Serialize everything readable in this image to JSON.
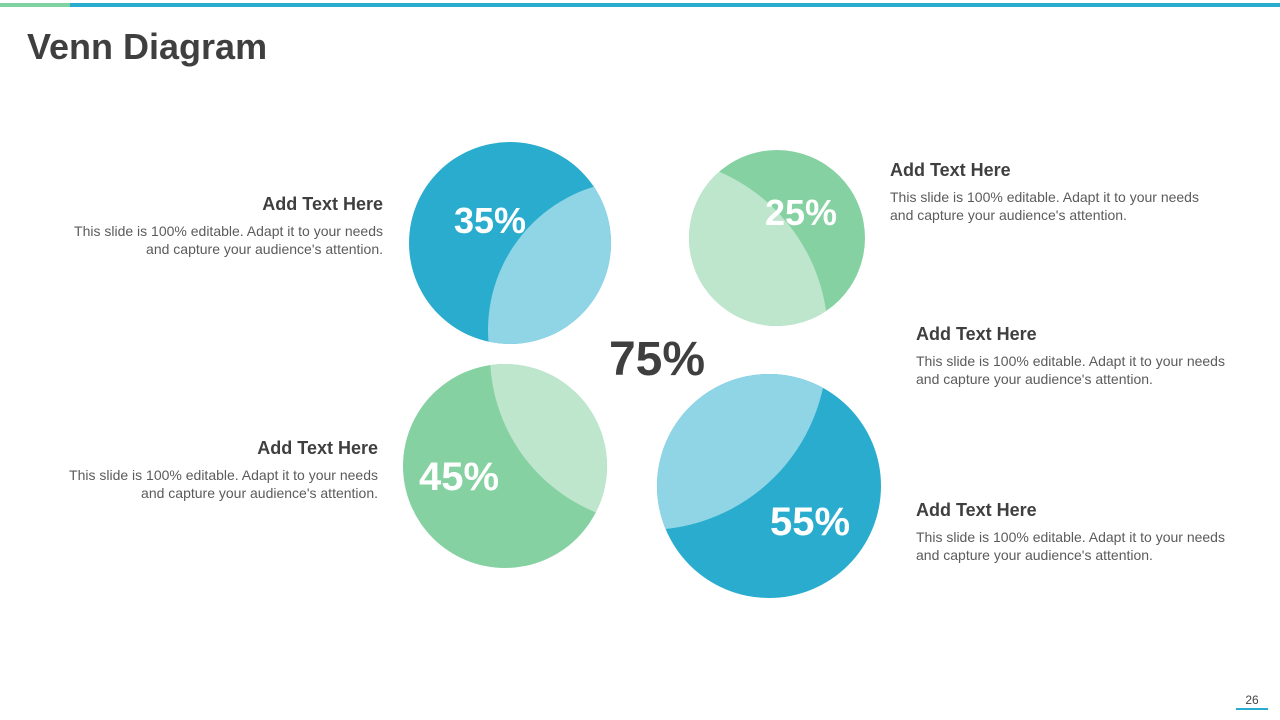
{
  "title": "Venn Diagram",
  "center_value": "75%",
  "page_number": "26",
  "colors": {
    "teal": "#29accd",
    "teal_light": "#8fd5e6",
    "green": "#85d1a1",
    "green_light": "#bee6cd",
    "accent_green": "#7fd3a0",
    "text_dark": "#3f3f3f",
    "text_body": "#5b5b5b"
  },
  "circles": [
    {
      "label": "35%",
      "color": "teal"
    },
    {
      "label": "25%",
      "color": "green"
    },
    {
      "label": "45%",
      "color": "green"
    },
    {
      "label": "55%",
      "color": "teal"
    }
  ],
  "blocks": [
    {
      "heading": "Add Text Here",
      "body": "This slide is 100% editable. Adapt it to your needs and capture your audience's attention."
    },
    {
      "heading": "Add Text Here",
      "body": "This slide is 100% editable. Adapt it to your needs and capture your audience's attention."
    },
    {
      "heading": "Add Text Here",
      "body": "This slide is 100% editable. Adapt it to your needs and capture your audience's attention."
    },
    {
      "heading": "Add Text Here",
      "body": "This slide is 100% editable. Adapt it to your needs and capture your audience's attention."
    },
    {
      "heading": "Add Text Here",
      "body": "This slide is 100% editable. Adapt it to your needs and capture your audience's attention."
    }
  ]
}
